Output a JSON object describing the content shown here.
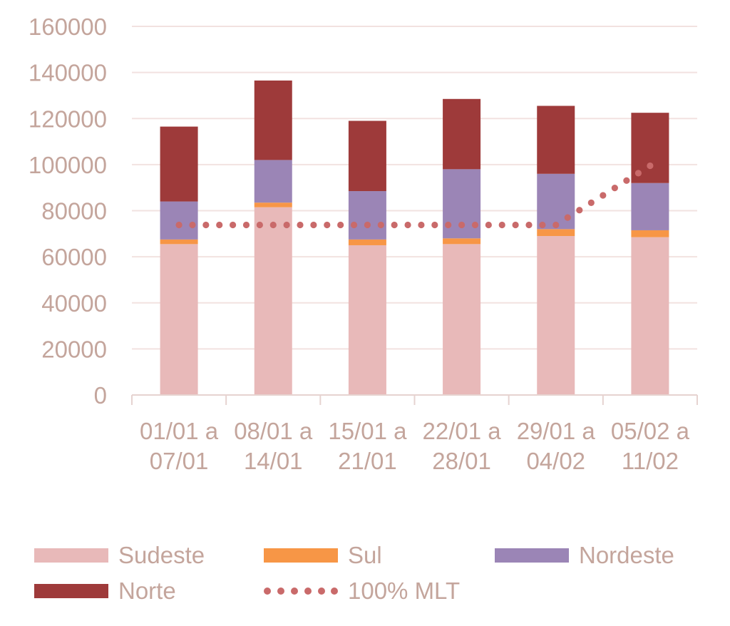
{
  "chart_data": {
    "type": "bar",
    "stacked": true,
    "categories": [
      "01/01 a 07/01",
      "08/01 a 14/01",
      "15/01 a 21/01",
      "22/01 a 28/01",
      "29/01 a 04/02",
      "05/02 a 11/02"
    ],
    "category_lines": [
      [
        "01/01 a",
        "07/01"
      ],
      [
        "08/01 a",
        "14/01"
      ],
      [
        "15/01 a",
        "21/01"
      ],
      [
        "22/01 a",
        "28/01"
      ],
      [
        "29/01 a",
        "04/02"
      ],
      [
        "05/02 a",
        "11/02"
      ]
    ],
    "series": [
      {
        "name": "Sudeste",
        "type": "bar",
        "color": "#e8b9b9",
        "values": [
          65500,
          81500,
          65000,
          65500,
          69000,
          68500
        ]
      },
      {
        "name": "Sul",
        "type": "bar",
        "color": "#f79646",
        "values": [
          2000,
          2000,
          2500,
          2500,
          3000,
          3000
        ]
      },
      {
        "name": "Nordeste",
        "type": "bar",
        "color": "#9b85b6",
        "values": [
          16500,
          18500,
          21000,
          30000,
          24000,
          20500
        ]
      },
      {
        "name": "Norte",
        "type": "bar",
        "color": "#9e3a3a",
        "values": [
          32500,
          34500,
          30500,
          30500,
          29500,
          30500
        ]
      },
      {
        "name": "100% MLT",
        "type": "line",
        "style": "dotted",
        "color": "#c96a6a",
        "values": [
          73800,
          73800,
          73800,
          73800,
          73800,
          99500
        ]
      }
    ],
    "ylim": [
      0,
      160000
    ],
    "yticks": [
      "0",
      "20000",
      "40000",
      "60000",
      "80000",
      "100000",
      "120000",
      "140000",
      "160000"
    ],
    "grid": true,
    "legend_position": "bottom",
    "title": "",
    "xlabel": "",
    "ylabel": ""
  }
}
